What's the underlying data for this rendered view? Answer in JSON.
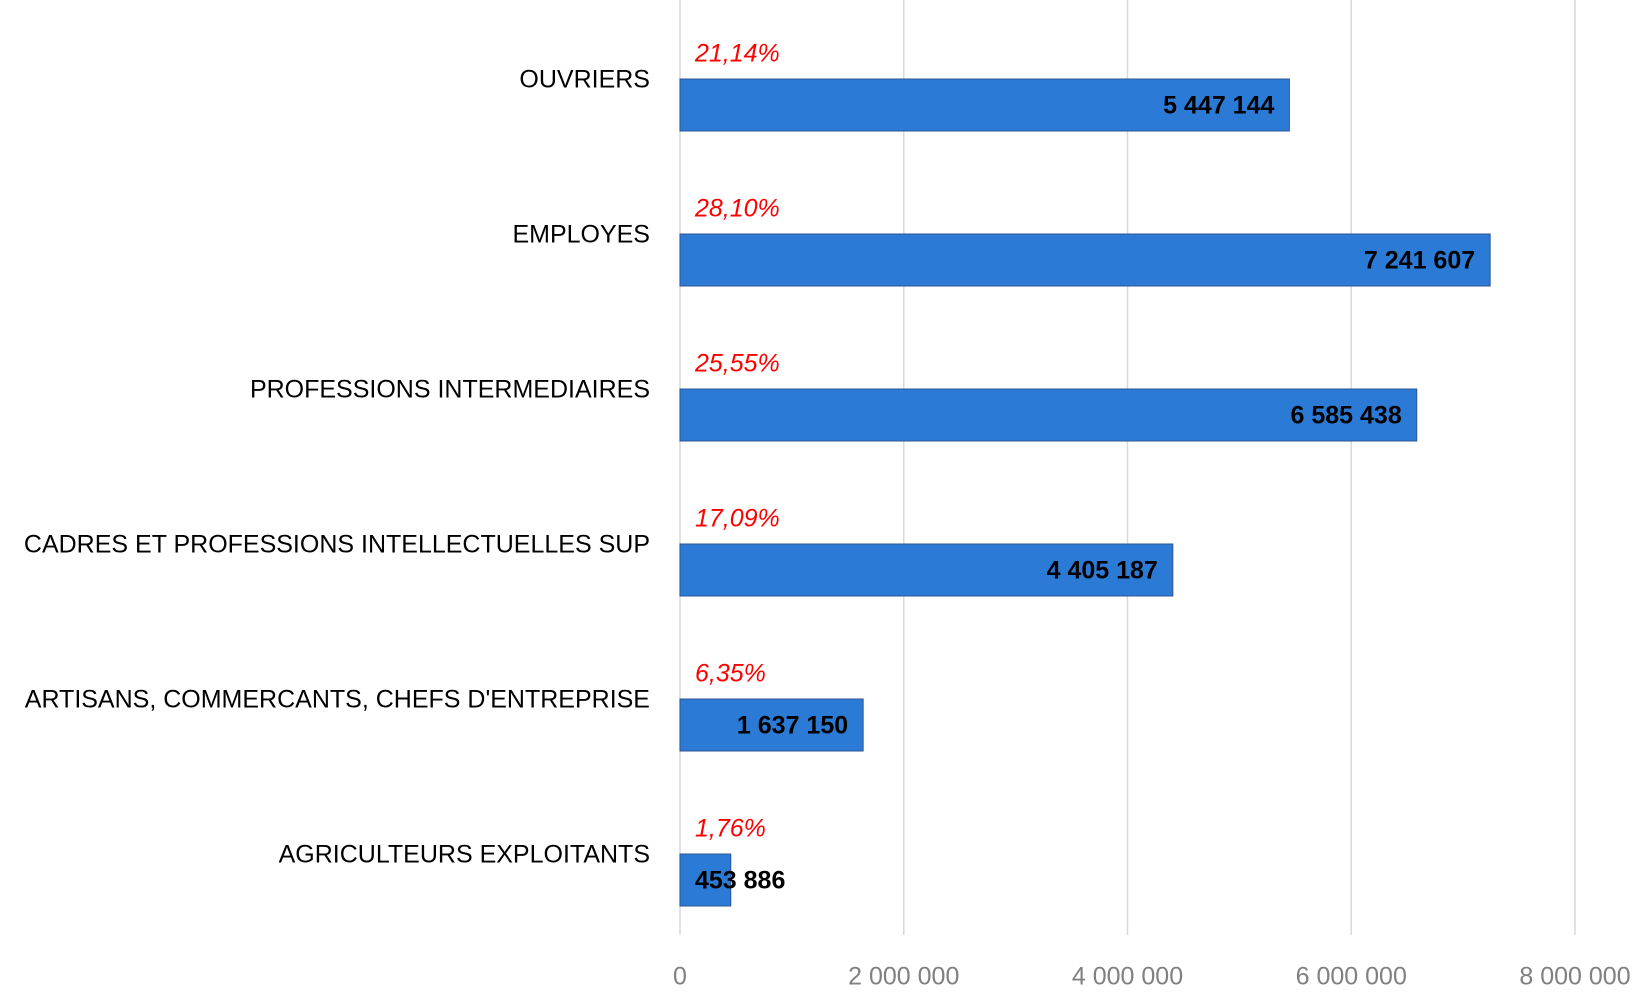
{
  "chart_data": {
    "type": "bar",
    "orientation": "horizontal",
    "categories": [
      "OUVRIERS",
      "EMPLOYES",
      "PROFESSIONS INTERMEDIAIRES",
      "CADRES ET PROFESSIONS INTELLECTUELLES SUP",
      "ARTISANS, COMMERCANTS, CHEFS D'ENTREPRISE",
      "AGRICULTEURS EXPLOITANTS"
    ],
    "values": [
      5447144,
      7241607,
      6585438,
      4405187,
      1637150,
      453886
    ],
    "value_labels": [
      "5 447 144",
      "7 241 607",
      "6 585 438",
      "4 405 187",
      "1 637 150",
      "453 886"
    ],
    "share_labels": [
      "21,14%",
      "28,10%",
      "25,55%",
      "17,09%",
      "6,35%",
      "1,76%"
    ],
    "color": "#2b7bd6",
    "xlim": [
      0,
      8000000
    ],
    "xticks": [
      0,
      {
        "value": 2000000,
        "label": "2 000 000"
      },
      {
        "value": 4000000,
        "label": "4 000 000"
      },
      {
        "value": 6000000,
        "label": "6 000 000"
      },
      {
        "value": 8000000,
        "label": "8 000 000"
      }
    ],
    "grid": true
  }
}
